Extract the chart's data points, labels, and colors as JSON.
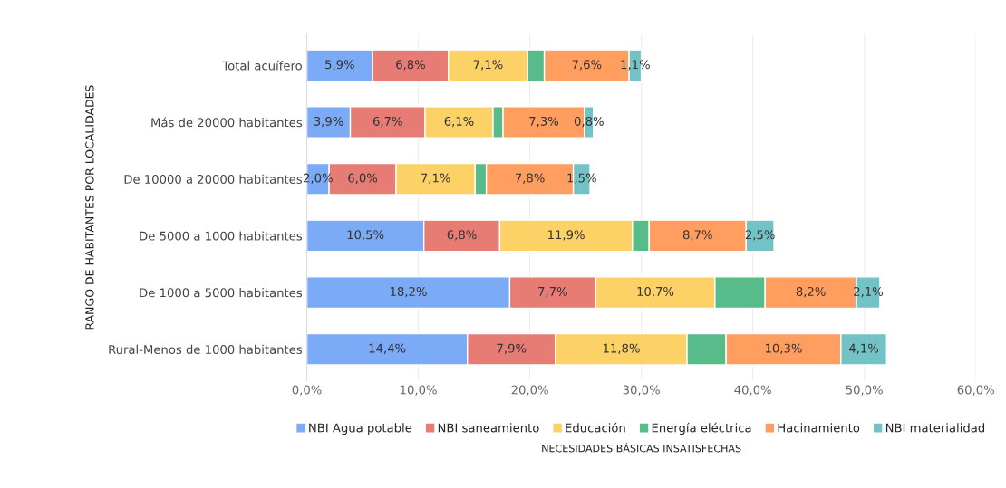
{
  "chart_data": {
    "type": "bar",
    "orientation": "horizontal",
    "stacked": true,
    "categories": [
      "Total acuífero",
      "Más de 20000 habitantes",
      "De 10000 a 20000 habitantes",
      "De 5000 a 1000 habitantes",
      "De 1000 a 5000 habitantes",
      "Rural-Menos de 1000 habitantes"
    ],
    "series": [
      {
        "name": "NBI Agua potable",
        "color": "#7baaf7",
        "values": [
          5.9,
          3.9,
          2.0,
          10.5,
          18.2,
          14.4
        ],
        "value_labels": [
          "5,9%",
          "3,9%",
          "2,0%",
          "10,5%",
          "18,2%",
          "14,4%"
        ]
      },
      {
        "name": "NBI saneamiento",
        "color": "#e67c73",
        "values": [
          6.8,
          6.7,
          6.0,
          6.8,
          7.7,
          7.9
        ],
        "value_labels": [
          "6,8%",
          "6,7%",
          "6,0%",
          "6,8%",
          "7,7%",
          "7,9%"
        ]
      },
      {
        "name": "Educación",
        "color": "#fcd166",
        "values": [
          7.1,
          6.1,
          7.1,
          11.9,
          10.7,
          11.8
        ],
        "value_labels": [
          "7,1%",
          "6,1%",
          "7,1%",
          "11,9%",
          "10,7%",
          "11,8%"
        ]
      },
      {
        "name": "Energía eléctrica",
        "color": "#57bb8a",
        "values": [
          1.5,
          0.9,
          1.0,
          1.5,
          4.5,
          3.5
        ],
        "value_labels": [
          null,
          null,
          null,
          null,
          null,
          null
        ]
      },
      {
        "name": "Hacinamiento",
        "color": "#ff9e5e",
        "values": [
          7.6,
          7.3,
          7.8,
          8.7,
          8.2,
          10.3
        ],
        "value_labels": [
          "7,6%",
          "7,3%",
          "7,8%",
          "8,7%",
          "8,2%",
          "10,3%"
        ]
      },
      {
        "name": "NBI materialidad",
        "color": "#72c3c6",
        "values": [
          1.1,
          0.8,
          1.5,
          2.5,
          2.1,
          4.1
        ],
        "value_labels": [
          "1,1%",
          "0,8%",
          "1,5%",
          "2,5%",
          "2,1%",
          "4,1%"
        ]
      }
    ],
    "xlim": [
      0,
      60
    ],
    "xticks": [
      {
        "value": 0,
        "label": "0,0%"
      },
      {
        "value": 10,
        "label": "10,0%"
      },
      {
        "value": 20,
        "label": "20,0%"
      },
      {
        "value": 30,
        "label": "30,0%"
      },
      {
        "value": 40,
        "label": "40,0%"
      },
      {
        "value": 50,
        "label": "50,0%"
      },
      {
        "value": 60,
        "label": "60,0%"
      }
    ],
    "xlabel": "NECESIDADES BÁSICAS INSATISFECHAS",
    "ylabel": "RANGO DE HABITANTES POR LOCALIDADES",
    "grid": "x",
    "legend": "bottom"
  }
}
